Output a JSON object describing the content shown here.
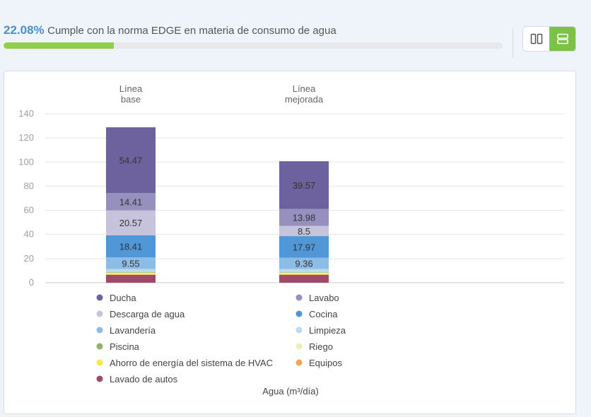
{
  "header": {
    "percent": "22.08%",
    "description": "Cumple con la norma EDGE en materia de consumo de agua",
    "progress_fraction": 0.2208
  },
  "view_toggle": {
    "options": [
      {
        "icon": "columns-icon",
        "active": false
      },
      {
        "icon": "rows-icon",
        "active": true
      }
    ]
  },
  "colors": {
    "accent": "#4a90c8",
    "progress": "#8fcf4a",
    "toggle_active": "#7cc245"
  },
  "chart_data": {
    "type": "bar",
    "stacked": true,
    "categories": [
      "Línea\nbase",
      "Línea\nmejorada"
    ],
    "ylim": [
      0,
      140
    ],
    "yticks": [
      0,
      20,
      40,
      60,
      80,
      100,
      120,
      140
    ],
    "xlabel": "Agua (m³/día)",
    "grid": true,
    "legend_position": "bottom",
    "series": [
      {
        "name": "Lavado de autos",
        "color": "#a04a6a",
        "values": [
          6.5,
          6.5
        ]
      },
      {
        "name": "Equipos",
        "color": "#f0a64c",
        "values": [
          0.4,
          0.4
        ]
      },
      {
        "name": "Ahorro de energía del sistema de HVAC",
        "color": "#f7ea4d",
        "values": [
          1.0,
          0.9
        ]
      },
      {
        "name": "Riego",
        "color": "#e3f5b5",
        "values": [
          0.5,
          0.5
        ]
      },
      {
        "name": "Piscina",
        "color": "#8fb36a",
        "values": [
          0.4,
          0.4
        ]
      },
      {
        "name": "Limpieza",
        "color": "#bcd9ef",
        "values": [
          2.6,
          2.6
        ]
      },
      {
        "name": "Lavandería",
        "color": "#8cbde6",
        "values": [
          9.55,
          9.36
        ]
      },
      {
        "name": "Cocina",
        "color": "#4f97d6",
        "values": [
          18.41,
          17.97
        ]
      },
      {
        "name": "Descarga de agua",
        "color": "#c8c3dd",
        "values": [
          20.57,
          8.5
        ]
      },
      {
        "name": "Lavabo",
        "color": "#9690bf",
        "values": [
          14.41,
          13.98
        ]
      },
      {
        "name": "Ducha",
        "color": "#6d619e",
        "values": [
          54.47,
          39.57
        ]
      }
    ],
    "data_labels": [
      [
        "",
        "",
        "",
        "",
        "",
        "",
        "9.55",
        "18.41",
        "20.57",
        "14.41",
        "54.47"
      ],
      [
        "",
        "",
        "",
        "",
        "",
        "",
        "9.36",
        "17.97",
        "8.5",
        "13.98",
        "39.57"
      ]
    ],
    "legend": [
      "Ducha",
      "Lavabo",
      "Descarga de agua",
      "Cocina",
      "Lavandería",
      "Limpieza",
      "Piscina",
      "Riego",
      "Ahorro de energía del sistema de HVAC",
      "Equipos",
      "Lavado de autos"
    ]
  }
}
